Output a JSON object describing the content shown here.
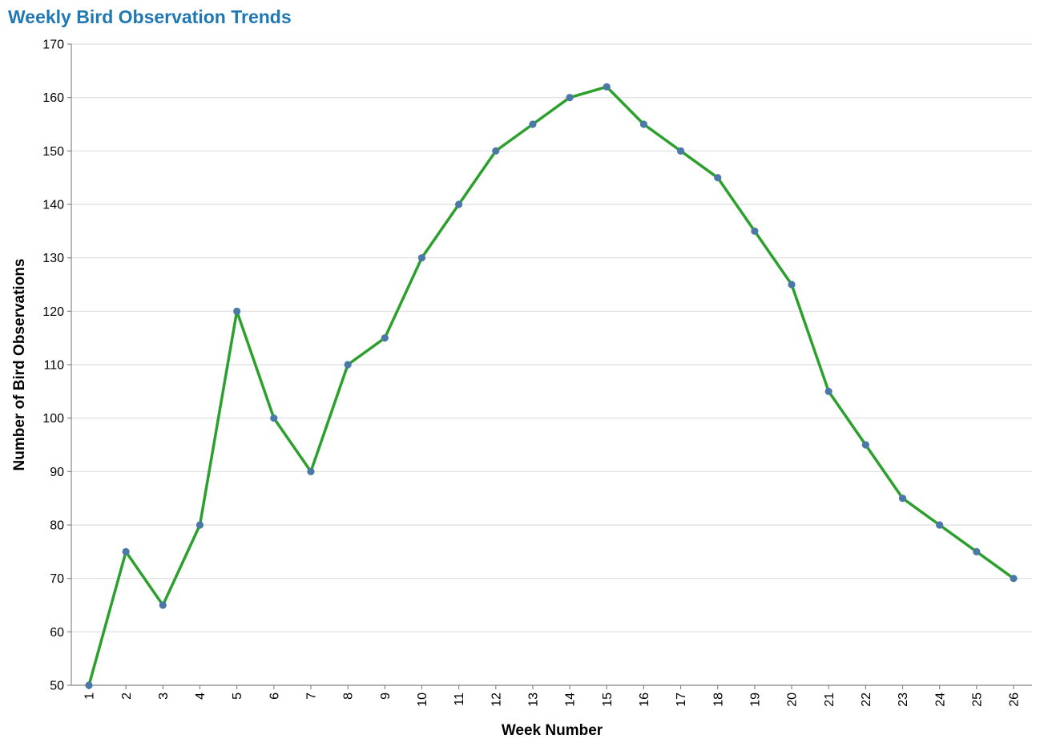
{
  "chart_data": {
    "type": "line",
    "title": "Weekly Bird Observation Trends",
    "xlabel": "Week Number",
    "ylabel": "Number of Bird Observations",
    "x": [
      1,
      2,
      3,
      4,
      5,
      6,
      7,
      8,
      9,
      10,
      11,
      12,
      13,
      14,
      15,
      16,
      17,
      18,
      19,
      20,
      21,
      22,
      23,
      24,
      25,
      26
    ],
    "values": [
      50,
      75,
      65,
      80,
      120,
      100,
      90,
      110,
      115,
      130,
      140,
      150,
      155,
      160,
      162,
      155,
      150,
      145,
      135,
      125,
      105,
      95,
      85,
      80,
      75,
      70
    ],
    "ylim": [
      50,
      170
    ],
    "yticks": [
      50,
      60,
      70,
      80,
      90,
      100,
      110,
      120,
      130,
      140,
      150,
      160,
      170
    ],
    "grid": true,
    "colors": {
      "title": "#1f77b4",
      "line": "#2ca02c",
      "point": "#4c78a8"
    }
  }
}
